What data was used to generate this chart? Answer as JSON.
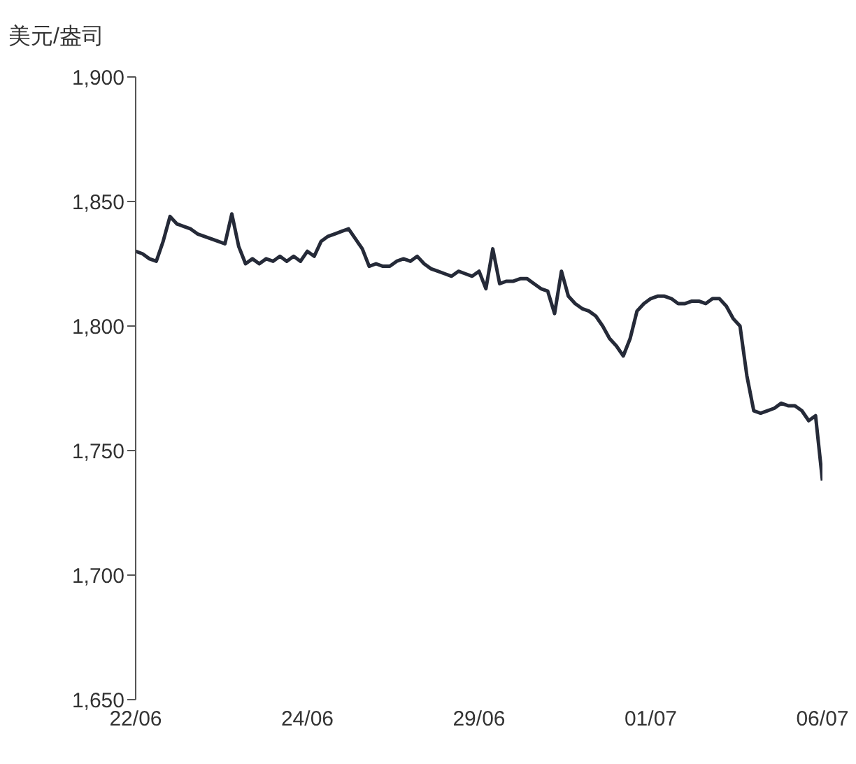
{
  "chart_data": {
    "type": "line",
    "ylabel": "美元/盎司",
    "categories": [
      "22/06",
      null,
      null,
      null,
      null,
      null,
      null,
      null,
      null,
      null,
      null,
      null,
      null,
      null,
      null,
      null,
      null,
      null,
      null,
      null,
      null,
      null,
      null,
      null,
      null,
      "24/06",
      null,
      null,
      null,
      null,
      null,
      null,
      null,
      null,
      null,
      null,
      null,
      null,
      null,
      null,
      null,
      null,
      null,
      null,
      null,
      null,
      null,
      null,
      null,
      null,
      "29/06",
      null,
      null,
      null,
      null,
      null,
      null,
      null,
      null,
      null,
      null,
      null,
      null,
      null,
      null,
      null,
      null,
      null,
      null,
      null,
      null,
      null,
      null,
      null,
      null,
      "01/07",
      null,
      null,
      null,
      null,
      null,
      null,
      null,
      null,
      null,
      null,
      null,
      null,
      null,
      null,
      null,
      null,
      null,
      null,
      null,
      null,
      null,
      null,
      null,
      null,
      "06/07"
    ],
    "series": [
      {
        "color": "#252a38",
        "values": [
          1830,
          1829,
          1827,
          1826,
          1834,
          1844,
          1841,
          1840,
          1839,
          1837,
          1836,
          1835,
          1834,
          1833,
          1845,
          1832,
          1825,
          1827,
          1825,
          1827,
          1826,
          1828,
          1826,
          1828,
          1826,
          1830,
          1828,
          1834,
          1836,
          1837,
          1838,
          1839,
          1835,
          1831,
          1824,
          1825,
          1824,
          1824,
          1826,
          1827,
          1826,
          1828,
          1825,
          1823,
          1822,
          1821,
          1820,
          1822,
          1821,
          1820,
          1822,
          1815,
          1831,
          1817,
          1818,
          1818,
          1819,
          1819,
          1817,
          1815,
          1814,
          1805,
          1822,
          1812,
          1809,
          1807,
          1806,
          1804,
          1800,
          1795,
          1792,
          1788,
          1795,
          1806,
          1809,
          1811,
          1812,
          1812,
          1811,
          1809,
          1809,
          1810,
          1810,
          1809,
          1811,
          1811,
          1808,
          1803,
          1800,
          1780,
          1766,
          1765,
          1766,
          1767,
          1769,
          1768,
          1768,
          1766,
          1762,
          1764,
          1738
        ]
      }
    ],
    "ylim": [
      1650,
      1900
    ],
    "yticks": [
      {
        "value": 1650,
        "label": "1,650"
      },
      {
        "value": 1700,
        "label": "1,700"
      },
      {
        "value": 1750,
        "label": "1,750"
      },
      {
        "value": 1800,
        "label": "1,800"
      },
      {
        "value": 1850,
        "label": "1,850"
      },
      {
        "value": 1900,
        "label": "1,900"
      }
    ],
    "grid": false,
    "marker": "none",
    "line_style": "solid"
  }
}
